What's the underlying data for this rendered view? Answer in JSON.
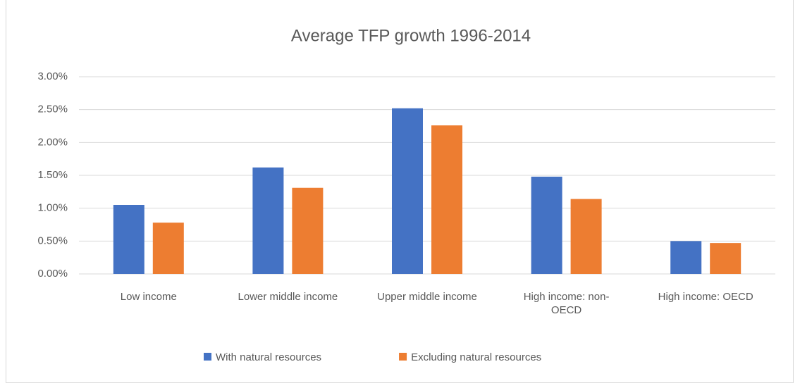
{
  "chart_data": {
    "type": "bar",
    "title": "Average TFP growth 1996-2014",
    "categories": [
      "Low income",
      "Lower middle income",
      "Upper middle income",
      "High income: non-OECD",
      "High income: OECD"
    ],
    "series": [
      {
        "name": "With natural resources",
        "color": "#4472c4",
        "values": [
          1.05,
          1.62,
          2.52,
          1.48,
          0.5
        ]
      },
      {
        "name": "Excluding natural resources",
        "color": "#ed7d31",
        "values": [
          0.78,
          1.31,
          2.26,
          1.14,
          0.47
        ]
      }
    ],
    "ylim": [
      0,
      3
    ],
    "yticks": [
      {
        "value": 0,
        "label": "0.00%"
      },
      {
        "value": 0.5,
        "label": "0.50%"
      },
      {
        "value": 1,
        "label": "1.00%"
      },
      {
        "value": 1.5,
        "label": "1.50%"
      },
      {
        "value": 2,
        "label": "2.00%"
      },
      {
        "value": 2.5,
        "label": "2.50%"
      },
      {
        "value": 3,
        "label": "3.00%"
      }
    ],
    "grid": true,
    "legend": "bottom"
  }
}
